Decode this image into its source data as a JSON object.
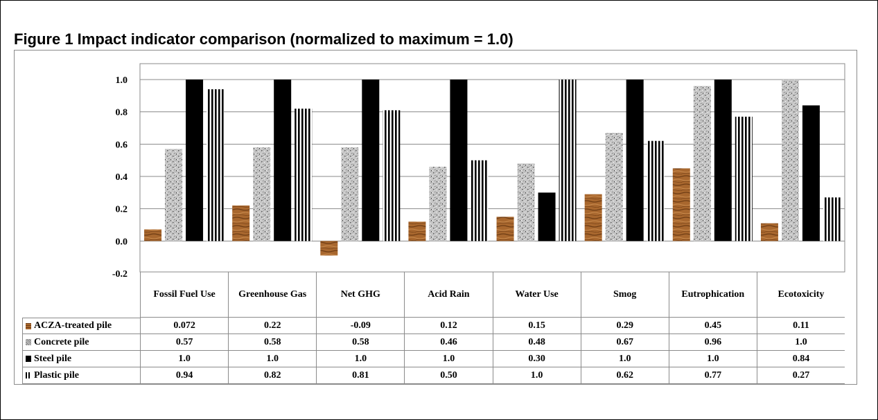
{
  "figure_title": "Figure 1  Impact indicator comparison (normalized to maximum = 1.0)",
  "colors": {
    "acza": "#a0602a",
    "concrete": "#b8b8b8",
    "steel": "#000000",
    "plastic": "#000000"
  },
  "chart_data": {
    "type": "bar",
    "title": "Figure 1  Impact indicator comparison (normalized to maximum = 1.0)",
    "categories": [
      "Fossil Fuel Use",
      "Greenhouse Gas",
      "Net GHG",
      "Acid Rain",
      "Water Use",
      "Smog",
      "Eutrophication",
      "Ecotoxicity"
    ],
    "ylim": [
      -0.2,
      1.0
    ],
    "yticks": [
      "1.0",
      "0.8",
      "0.6",
      "0.4",
      "0.2",
      "0.0",
      "-0.2"
    ],
    "grid": true,
    "legend": "data-table",
    "series": [
      {
        "name": "ACZA-treated pile",
        "values": [
          0.072,
          0.22,
          -0.09,
          0.12,
          0.15,
          0.29,
          0.45,
          0.11
        ],
        "labels": [
          "0.072",
          "0.22",
          "-0.09",
          "0.12",
          "0.15",
          "0.29",
          "0.45",
          "0.11"
        ]
      },
      {
        "name": "Concrete pile",
        "values": [
          0.57,
          0.58,
          0.58,
          0.46,
          0.48,
          0.67,
          0.96,
          1.0
        ],
        "labels": [
          "0.57",
          "0.58",
          "0.58",
          "0.46",
          "0.48",
          "0.67",
          "0.96",
          "1.0"
        ]
      },
      {
        "name": "Steel pile",
        "values": [
          1.0,
          1.0,
          1.0,
          1.0,
          0.3,
          1.0,
          1.0,
          0.84
        ],
        "labels": [
          "1.0",
          "1.0",
          "1.0",
          "1.0",
          "0.30",
          "1.0",
          "1.0",
          "0.84"
        ]
      },
      {
        "name": "Plastic pile",
        "values": [
          0.94,
          0.82,
          0.81,
          0.5,
          1.0,
          0.62,
          0.77,
          0.27
        ],
        "labels": [
          "0.94",
          "0.82",
          "0.81",
          "0.50",
          "1.0",
          "0.62",
          "0.77",
          "0.27"
        ]
      }
    ]
  }
}
